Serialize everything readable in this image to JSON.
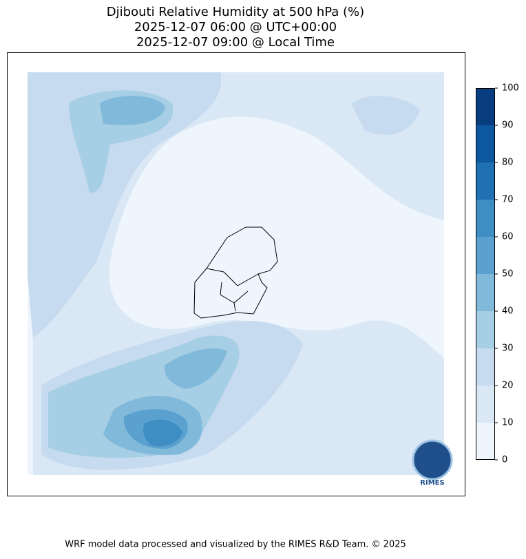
{
  "title": [
    "Djibouti Relative Humidity at 500 hPa (%)",
    "2025-12-07 06:00 @ UTC+00:00",
    "2025-12-07 09:00 @ Local Time"
  ],
  "colorbar": {
    "ticks": [
      0,
      10,
      20,
      30,
      40,
      50,
      60,
      70,
      80,
      90,
      100
    ],
    "colors": [
      "#eef5fc",
      "#dae8f5",
      "#c6dbef",
      "#a6cee4",
      "#81b9da",
      "#5aa1cf",
      "#3e8ec4",
      "#2070b4",
      "#0e58a2",
      "#083d7f"
    ]
  },
  "logo_text": "RIMES",
  "footer": "WRF model data processed and visualized by the RIMES R&D Team. © 2025"
}
